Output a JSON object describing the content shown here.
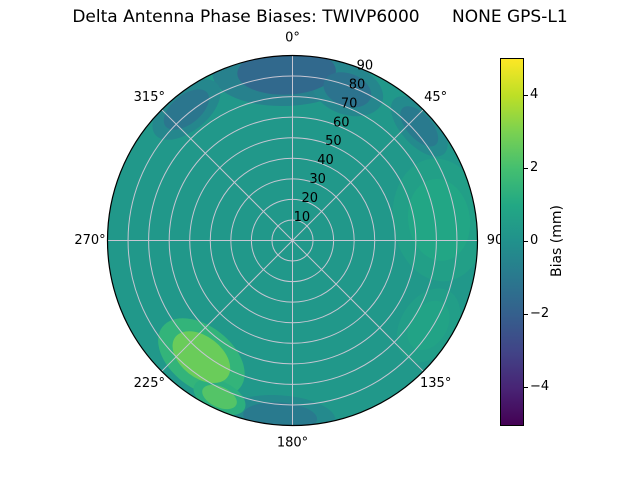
{
  "title": "Delta Antenna Phase Biases: TWIVP6000      NONE GPS-L1",
  "chart_data": {
    "type": "polar_contour",
    "title": "Delta Antenna Phase Biases: TWIVP6000      NONE GPS-L1",
    "theta_tick_labels": [
      "0°",
      "45°",
      "90",
      "135°",
      "180°",
      "225°",
      "270°",
      "315°"
    ],
    "theta_tick_angles_deg": [
      0,
      45,
      90,
      135,
      180,
      225,
      270,
      315
    ],
    "r_tick_values": [
      10,
      20,
      30,
      40,
      50,
      60,
      70,
      80,
      90
    ],
    "r_tick_labels": [
      "10",
      "20",
      "30",
      "40",
      "50",
      "60",
      "70",
      "80",
      "90"
    ],
    "r_label_angle_deg": 22.5,
    "r_max": 90,
    "grid_color": "#c6c6d2",
    "outline_color": "#000000",
    "base_bias_mm": 0.3,
    "colorbar": {
      "label": "Bias (mm)",
      "tick_values": [
        4,
        2,
        0,
        -2,
        -4
      ],
      "tick_labels": [
        "4",
        "2",
        "0",
        "−2",
        "−4"
      ],
      "vmin": -5,
      "vmax": 5,
      "colormap": "viridis",
      "stops": [
        "#440154",
        "#482475",
        "#414487",
        "#355f8d",
        "#2a788e",
        "#21918c",
        "#22a884",
        "#44bf70",
        "#7ad151",
        "#bddf26",
        "#fde725"
      ]
    },
    "regions": [
      {
        "name": "north-edge-low",
        "azimuth_deg": 358,
        "radius": 82,
        "semi_tangential": 24,
        "semi_radial": 11,
        "bias_mm": -1.6
      },
      {
        "name": "north-east-low",
        "azimuth_deg": 20,
        "radius": 78,
        "semi_tangential": 12,
        "semi_radial": 8,
        "bias_mm": -1.2
      },
      {
        "name": "northwest-low",
        "azimuth_deg": 321,
        "radius": 82,
        "semi_tangential": 13,
        "semi_radial": 7,
        "bias_mm": -1.1
      },
      {
        "name": "northeast-low",
        "azimuth_deg": 48,
        "radius": 83,
        "semi_tangential": 12,
        "semi_radial": 6,
        "bias_mm": -0.9
      },
      {
        "name": "east-high",
        "azimuth_deg": 82,
        "radius": 72,
        "semi_tangential": 20,
        "semi_radial": 15,
        "bias_mm": 0.9
      },
      {
        "name": "southeast-high",
        "azimuth_deg": 122,
        "radius": 78,
        "semi_tangential": 13,
        "semi_radial": 9,
        "bias_mm": 0.8
      },
      {
        "name": "south-low",
        "azimuth_deg": 184,
        "radius": 86,
        "semi_tangential": 18,
        "semi_radial": 7,
        "bias_mm": -0.9
      },
      {
        "name": "southwest-high-1",
        "azimuth_deg": 218,
        "radius": 72,
        "semi_tangential": 16,
        "semi_radial": 10,
        "bias_mm": 2.7
      },
      {
        "name": "southwest-high-2",
        "azimuth_deg": 205,
        "radius": 84,
        "semi_tangential": 9,
        "semi_radial": 5,
        "bias_mm": 2.3
      }
    ]
  }
}
